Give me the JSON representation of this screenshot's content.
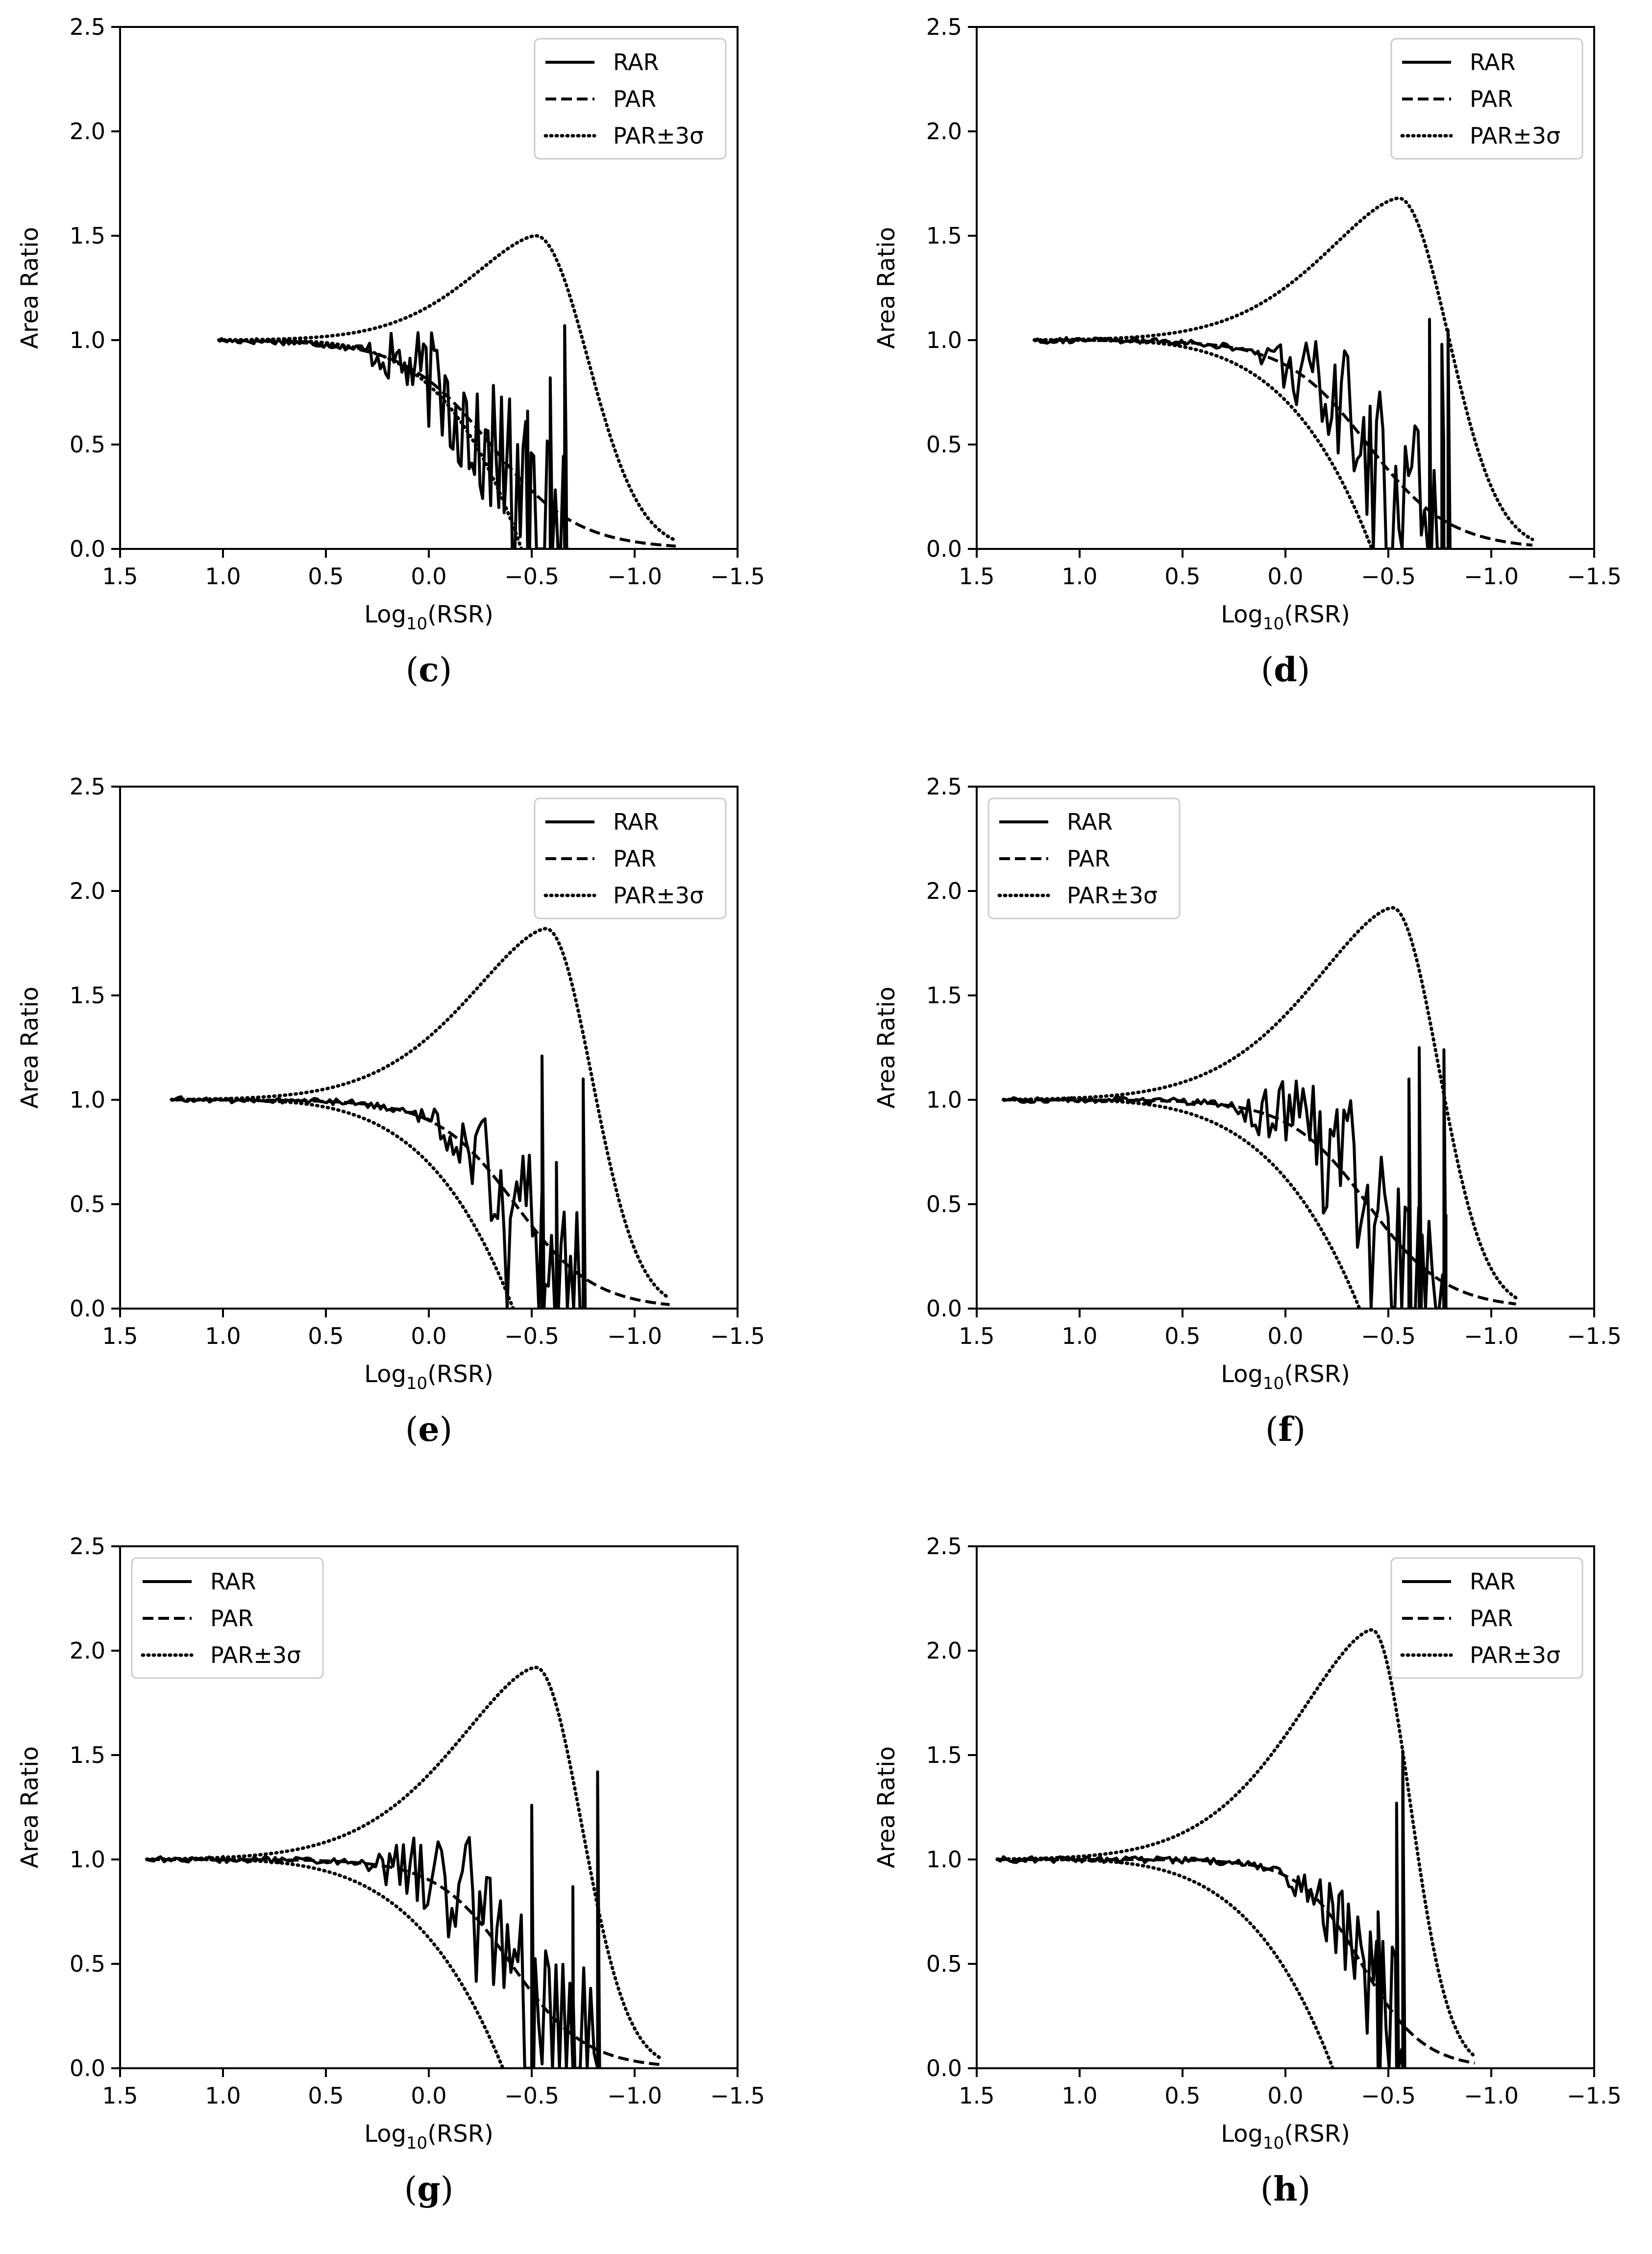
{
  "chart_data": [
    {
      "panel": "c",
      "type": "line",
      "xlabel_main": "Log",
      "xlabel_sub": "10",
      "xlabel_tail": "(RSR)",
      "ylabel": "Area Ratio",
      "xlim": [
        1.5,
        -1.5
      ],
      "ylim": [
        0,
        2.5
      ],
      "xticks": [
        1.5,
        1.0,
        0.5,
        0.0,
        -0.5,
        -1.0,
        -1.5
      ],
      "xtick_labels": [
        "1.5",
        "1.0",
        "0.5",
        "0.0",
        "−0.5",
        "−1.0",
        "−1.5"
      ],
      "yticks": [
        0,
        0.5,
        1.0,
        1.5,
        2.0,
        2.5
      ],
      "ytick_labels": [
        "0.0",
        "0.5",
        "1.0",
        "1.5",
        "2.0",
        "2.5"
      ],
      "legend": {
        "position": "upper-right",
        "entries": [
          "RAR",
          "PAR",
          "PAR±3σ"
        ]
      },
      "par": {
        "x_start": 1.02,
        "x_end": -1.2,
        "center": -0.3,
        "width": 0.21
      },
      "band": {
        "upper_peak_x": -0.52,
        "upper_peak_y": 1.5,
        "lower_zero_x": -0.45,
        "end_x": -1.2
      },
      "rar": {
        "start": 1.02,
        "end": -0.68,
        "noise_from": 0.4,
        "noise_amp": 0.35,
        "spikes": [
          [
            -0.48,
            0.66
          ],
          [
            -0.59,
            0.82
          ],
          [
            -0.66,
            1.07
          ]
        ]
      }
    },
    {
      "panel": "d",
      "type": "line",
      "xlabel_main": "Log",
      "xlabel_sub": "10",
      "xlabel_tail": "(RSR)",
      "ylabel": "Area Ratio",
      "xlim": [
        1.5,
        -1.5
      ],
      "ylim": [
        0,
        2.5
      ],
      "xticks": [
        1.5,
        1.0,
        0.5,
        0.0,
        -0.5,
        -1.0,
        -1.5
      ],
      "xtick_labels": [
        "1.5",
        "1.0",
        "0.5",
        "0.0",
        "−0.5",
        "−1.0",
        "−1.5"
      ],
      "yticks": [
        0,
        0.5,
        1.0,
        1.5,
        2.0,
        2.5
      ],
      "ytick_labels": [
        "0.0",
        "0.5",
        "1.0",
        "1.5",
        "2.0",
        "2.5"
      ],
      "legend": {
        "position": "upper-right",
        "entries": [
          "RAR",
          "PAR",
          "PAR±3σ"
        ]
      },
      "par": {
        "x_start": 1.22,
        "x_end": -1.2,
        "center": -0.4,
        "width": 0.2
      },
      "band": {
        "upper_peak_x": -0.55,
        "upper_peak_y": 1.68,
        "lower_zero_x": -0.42,
        "end_x": -1.2
      },
      "rar": {
        "start": 1.22,
        "end": -0.8,
        "noise_from": 0.2,
        "noise_amp": 0.4,
        "spikes": [
          [
            -0.7,
            1.1
          ],
          [
            -0.76,
            0.98
          ],
          [
            -0.79,
            1.05
          ]
        ]
      }
    },
    {
      "panel": "e",
      "type": "line",
      "xlabel_main": "Log",
      "xlabel_sub": "10",
      "xlabel_tail": "(RSR)",
      "ylabel": "Area Ratio",
      "xlim": [
        1.5,
        -1.5
      ],
      "ylim": [
        0,
        2.5
      ],
      "xticks": [
        1.5,
        1.0,
        0.5,
        0.0,
        -0.5,
        -1.0,
        -1.5
      ],
      "xtick_labels": [
        "1.5",
        "1.0",
        "0.5",
        "0.0",
        "−0.5",
        "−1.0",
        "−1.5"
      ],
      "yticks": [
        0,
        0.5,
        1.0,
        1.5,
        2.0,
        2.5
      ],
      "ytick_labels": [
        "0.0",
        "0.5",
        "1.0",
        "1.5",
        "2.0",
        "2.5"
      ],
      "legend": {
        "position": "upper-right",
        "entries": [
          "RAR",
          "PAR",
          "PAR±3σ"
        ]
      },
      "par": {
        "x_start": 1.25,
        "x_end": -1.17,
        "center": -0.42,
        "width": 0.19
      },
      "band": {
        "upper_peak_x": -0.57,
        "upper_peak_y": 1.82,
        "lower_zero_x": -0.41,
        "end_x": -1.17
      },
      "rar": {
        "start": 1.25,
        "end": -0.75,
        "noise_from": 0.1,
        "noise_amp": 0.4,
        "spikes": [
          [
            -0.55,
            1.21
          ],
          [
            -0.62,
            0.7
          ],
          [
            -0.75,
            1.1
          ]
        ]
      }
    },
    {
      "panel": "f",
      "type": "line",
      "xlabel_main": "Log",
      "xlabel_sub": "10",
      "xlabel_tail": "(RSR)",
      "ylabel": "Area Ratio",
      "xlim": [
        1.5,
        -1.5
      ],
      "ylim": [
        0,
        2.5
      ],
      "xticks": [
        1.5,
        1.0,
        0.5,
        0.0,
        -0.5,
        -1.0,
        -1.5
      ],
      "xtick_labels": [
        "1.5",
        "1.0",
        "0.5",
        "0.0",
        "−0.5",
        "−1.0",
        "−1.5"
      ],
      "yticks": [
        0,
        0.5,
        1.0,
        1.5,
        2.0,
        2.5
      ],
      "ytick_labels": [
        "0.0",
        "0.5",
        "1.0",
        "1.5",
        "2.0",
        "2.5"
      ],
      "legend": {
        "position": "upper-left",
        "entries": [
          "RAR",
          "PAR",
          "PAR±3σ"
        ]
      },
      "par": {
        "x_start": 1.37,
        "x_end": -1.12,
        "center": -0.4,
        "width": 0.19
      },
      "band": {
        "upper_peak_x": -0.52,
        "upper_peak_y": 1.92,
        "lower_zero_x": -0.36,
        "end_x": -1.12
      },
      "rar": {
        "start": 1.37,
        "end": -0.78,
        "noise_from": 0.3,
        "noise_amp": 0.4,
        "spikes": [
          [
            -0.65,
            1.25
          ],
          [
            -0.77,
            1.24
          ],
          [
            -0.6,
            1.1
          ]
        ]
      }
    },
    {
      "panel": "g",
      "type": "line",
      "xlabel_main": "Log",
      "xlabel_sub": "10",
      "xlabel_tail": "(RSR)",
      "ylabel": "Area Ratio",
      "xlim": [
        1.5,
        -1.5
      ],
      "ylim": [
        0,
        2.5
      ],
      "xticks": [
        1.5,
        1.0,
        0.5,
        0.0,
        -0.5,
        -1.0,
        -1.5
      ],
      "xtick_labels": [
        "1.5",
        "1.0",
        "0.5",
        "0.0",
        "−0.5",
        "−1.0",
        "−1.5"
      ],
      "yticks": [
        0,
        0.5,
        1.0,
        1.5,
        2.0,
        2.5
      ],
      "ytick_labels": [
        "0.0",
        "0.5",
        "1.0",
        "1.5",
        "2.0",
        "2.5"
      ],
      "legend": {
        "position": "upper-left",
        "entries": [
          "RAR",
          "PAR",
          "PAR±3σ"
        ]
      },
      "par": {
        "x_start": 1.37,
        "x_end": -1.12,
        "center": -0.4,
        "width": 0.18
      },
      "band": {
        "upper_peak_x": -0.52,
        "upper_peak_y": 1.92,
        "lower_zero_x": -0.36,
        "end_x": -1.12
      },
      "rar": {
        "start": 1.37,
        "end": -0.82,
        "noise_from": 0.35,
        "noise_amp": 0.4,
        "spikes": [
          [
            -0.5,
            1.26
          ],
          [
            -0.7,
            0.87
          ],
          [
            -0.82,
            1.42
          ]
        ]
      }
    },
    {
      "panel": "h",
      "type": "line",
      "xlabel_main": "Log",
      "xlabel_sub": "10",
      "xlabel_tail": "(RSR)",
      "ylabel": "Area Ratio",
      "xlim": [
        1.5,
        -1.5
      ],
      "ylim": [
        0,
        2.5
      ],
      "xticks": [
        1.5,
        1.0,
        0.5,
        0.0,
        -0.5,
        -1.0,
        -1.5
      ],
      "xtick_labels": [
        "1.5",
        "1.0",
        "0.5",
        "0.0",
        "−0.5",
        "−1.0",
        "−1.5"
      ],
      "yticks": [
        0,
        0.5,
        1.0,
        1.5,
        2.0,
        2.5
      ],
      "ytick_labels": [
        "0.0",
        "0.5",
        "1.0",
        "1.5",
        "2.0",
        "2.5"
      ],
      "legend": {
        "position": "upper-right",
        "entries": [
          "RAR",
          "PAR",
          "PAR±3σ"
        ]
      },
      "par": {
        "x_start": 1.4,
        "x_end": -0.92,
        "center": -0.37,
        "width": 0.15
      },
      "band": {
        "upper_peak_x": -0.42,
        "upper_peak_y": 2.1,
        "lower_zero_x": -0.23,
        "end_x": -0.92
      },
      "rar": {
        "start": 1.4,
        "end": -0.58,
        "noise_from": 0.1,
        "noise_amp": 0.35,
        "spikes": [
          [
            -0.54,
            1.27
          ],
          [
            -0.57,
            1.52
          ],
          [
            -0.45,
            0.75
          ]
        ]
      }
    }
  ],
  "captions": {
    "c": "c",
    "d": "d",
    "e": "e",
    "f": "f",
    "g": "g",
    "h": "h"
  }
}
